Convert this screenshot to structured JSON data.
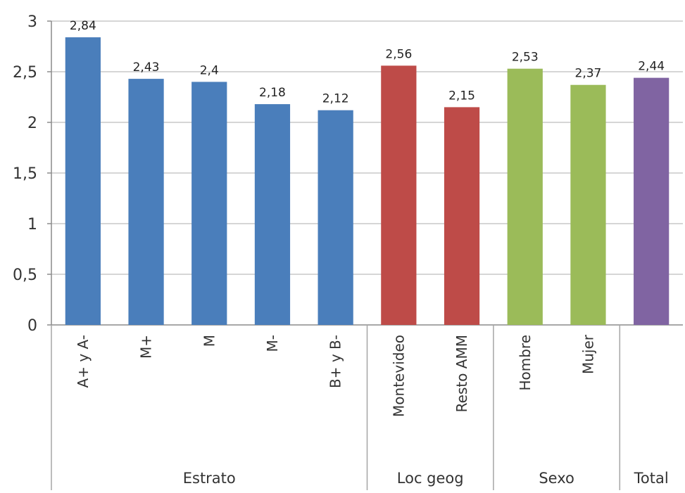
{
  "chart_data": {
    "type": "bar",
    "ylim": [
      0,
      3
    ],
    "yticks": [
      0,
      0.5,
      1,
      1.5,
      2,
      2.5,
      3
    ],
    "ytick_labels": [
      "0",
      "0,5",
      "1",
      "1,5",
      "2",
      "2,5",
      "3"
    ],
    "grid": true,
    "legend": "none",
    "groups": [
      {
        "label": "Estrato",
        "color": "#4a7ebb",
        "categories": [
          "A+ y A-",
          "M+",
          "M",
          "M-",
          "B+ y B-"
        ],
        "values": [
          2.84,
          2.43,
          2.4,
          2.18,
          2.12
        ],
        "value_labels": [
          "2,84",
          "2,43",
          "2,4",
          "2,18",
          "2,12"
        ]
      },
      {
        "label": "Loc geog",
        "color": "#be4b48",
        "categories": [
          "Montevideo",
          "Resto AMM"
        ],
        "values": [
          2.56,
          2.15
        ],
        "value_labels": [
          "2,56",
          "2,15"
        ]
      },
      {
        "label": "Sexo",
        "color": "#9bbb59",
        "categories": [
          "Hombre",
          "Mujer"
        ],
        "values": [
          2.53,
          2.37
        ],
        "value_labels": [
          "2,53",
          "2,37"
        ]
      },
      {
        "label": "Total",
        "color": "#8064a2",
        "categories": [
          ""
        ],
        "values": [
          2.44
        ],
        "value_labels": [
          "2,44"
        ]
      }
    ]
  }
}
